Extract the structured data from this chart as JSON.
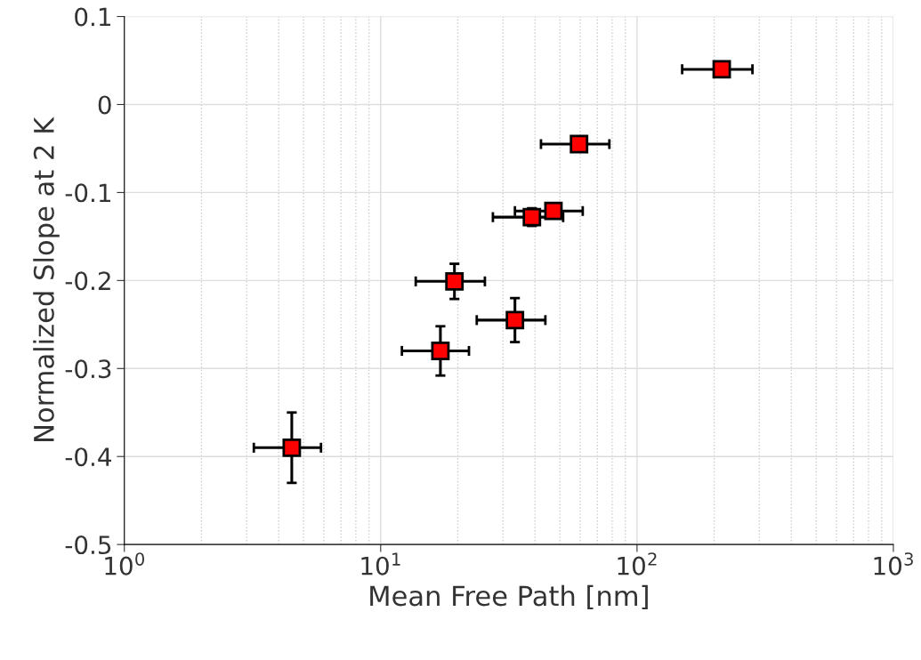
{
  "chart_data": {
    "type": "scatter",
    "xlabel": "Mean Free Path [nm]",
    "ylabel": "Normalized Slope at 2 K",
    "log": "x",
    "grid": true,
    "marker": "square",
    "legend": false,
    "xlim": [
      1,
      1000
    ],
    "xticks": [
      {
        "value": 1,
        "label": "10$^{0}$"
      },
      {
        "value": 10,
        "label": "10$^{1}$"
      },
      {
        "value": 100,
        "label": "10$^{2}$"
      },
      {
        "value": 1000,
        "label": "10$^{3}$"
      }
    ],
    "ylim": [
      -0.5,
      0.1
    ],
    "yticks": [
      -0.5,
      -0.4,
      -0.3,
      -0.2,
      -0.1,
      0,
      0.1
    ],
    "series": [
      {
        "color": "#ff0000",
        "x": [
          4.5,
          17.1,
          19.4,
          33.4,
          38.9,
          47.2,
          59.4,
          214
        ],
        "values": [
          -0.39,
          -0.28,
          -0.201,
          -0.245,
          -0.128,
          -0.121,
          -0.045,
          0.04
        ],
        "errors": [
          0.04,
          0.028,
          0.02,
          0.025,
          0.01,
          0.008,
          null,
          null
        ],
        "xerrors": [
          [
            3.2,
            5.85
          ],
          [
            12.1,
            22.1
          ],
          [
            13.7,
            25.5
          ],
          [
            23.7,
            43.9
          ],
          [
            27.4,
            51.5
          ],
          [
            33.4,
            61.4
          ],
          [
            42.2,
            78
          ],
          [
            150,
            282
          ]
        ]
      }
    ]
  }
}
